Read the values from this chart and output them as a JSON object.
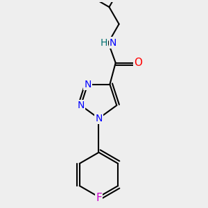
{
  "background_color": "#eeeeee",
  "bond_color": "#000000",
  "bond_width": 1.5,
  "atom_colors": {
    "N": "#0000ff",
    "O": "#ff0000",
    "F": "#cc00cc",
    "H": "#007070",
    "C": "#000000"
  },
  "font_size_atom": 10,
  "figsize": [
    3.0,
    3.0
  ],
  "dpi": 100
}
